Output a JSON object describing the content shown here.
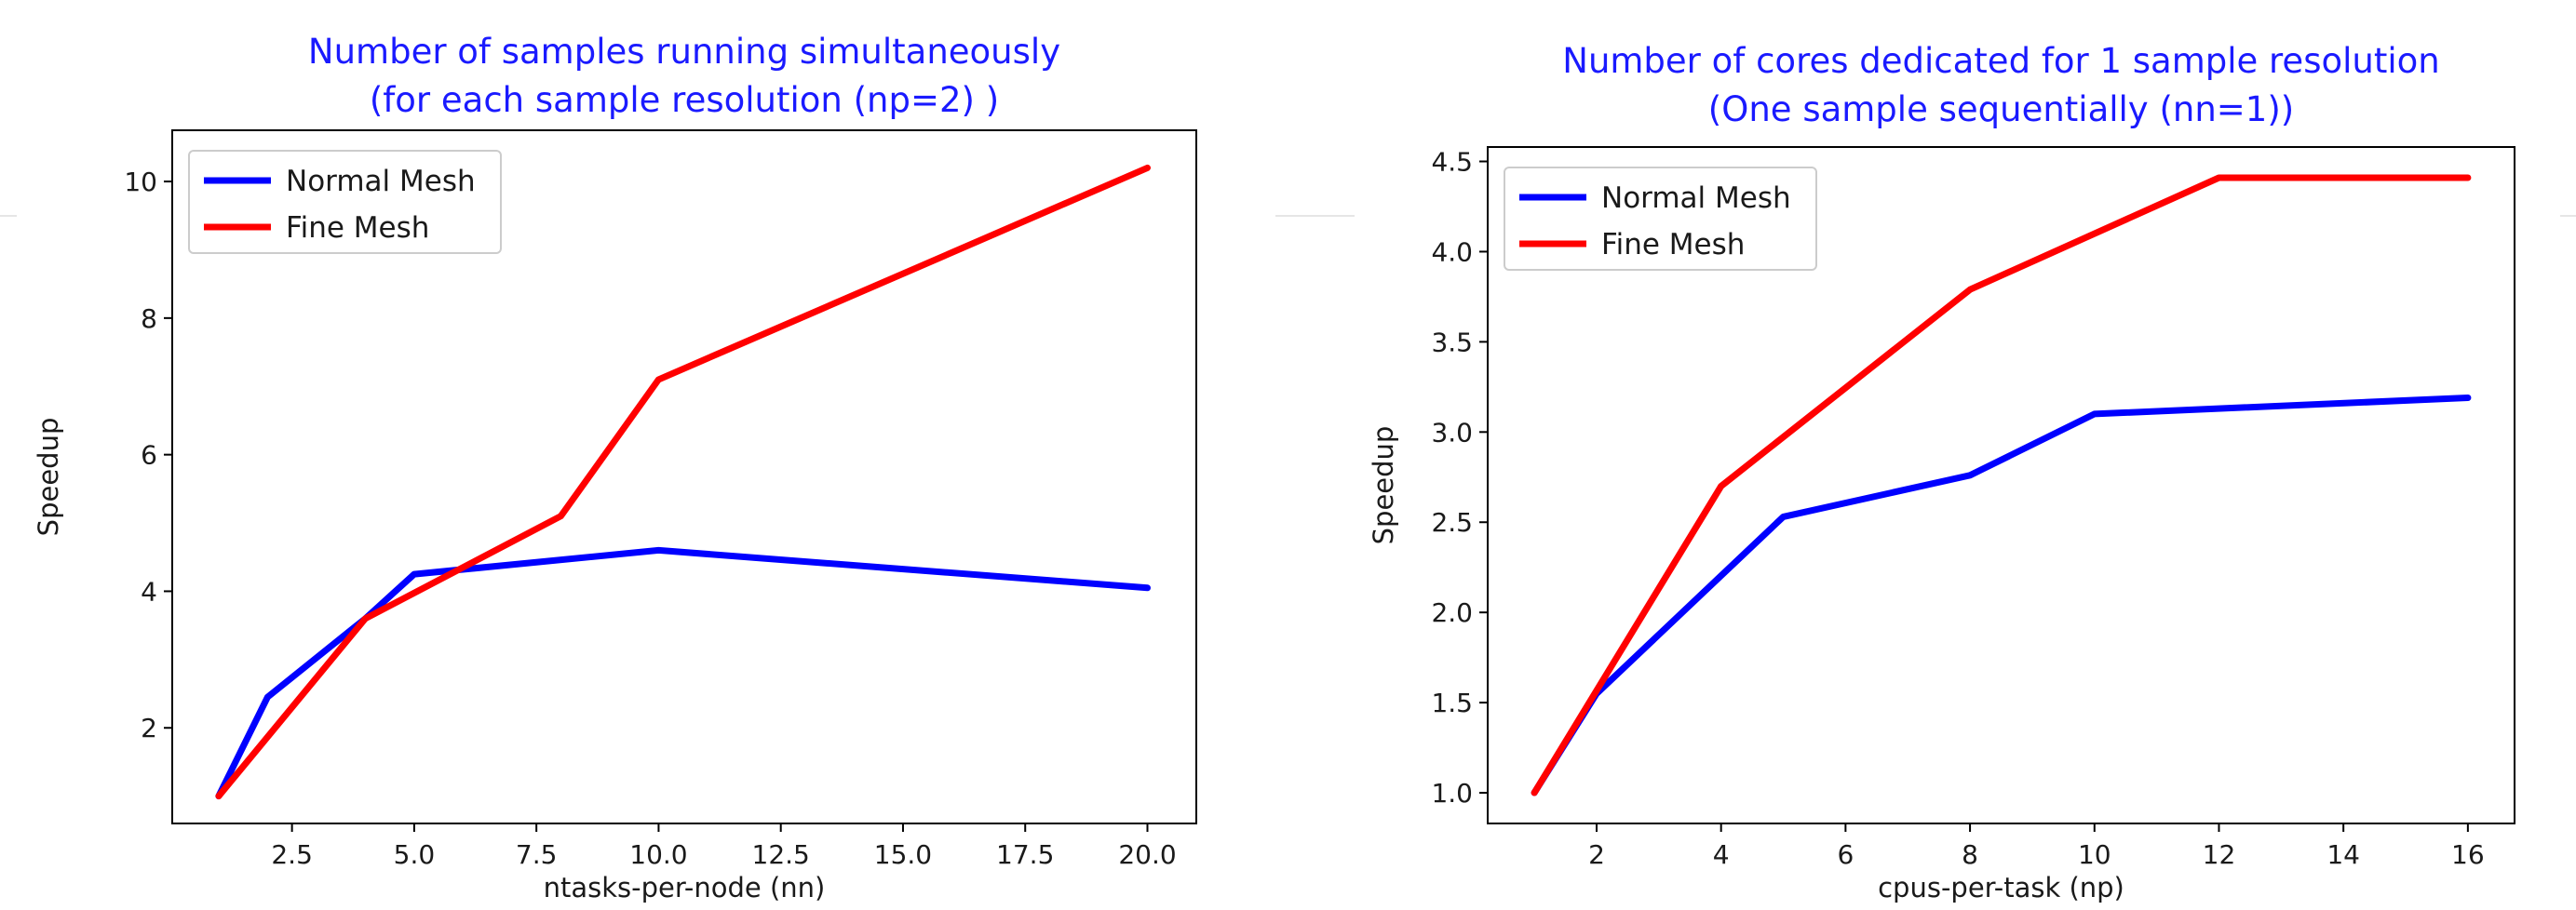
{
  "chart_data": [
    {
      "type": "line",
      "title": [
        "Number of samples running simultaneously",
        "(for each sample resolution (np=2) )"
      ],
      "xlabel": "ntasks-per-node (nn)",
      "ylabel": "Speedup",
      "xlim": [
        0.05,
        21.0
      ],
      "ylim": [
        0.6,
        10.75
      ],
      "xticks": [
        2.5,
        5.0,
        7.5,
        10.0,
        12.5,
        15.0,
        17.5,
        20.0
      ],
      "xtick_labels": [
        "2.5",
        "5.0",
        "7.5",
        "10.0",
        "12.5",
        "15.0",
        "17.5",
        "20.0"
      ],
      "yticks": [
        2,
        4,
        6,
        8,
        10
      ],
      "ytick_labels": [
        "2",
        "4",
        "6",
        "8",
        "10"
      ],
      "legend_position": "top-left",
      "grid": false,
      "series": [
        {
          "name": "Normal Mesh",
          "color": "#0000ff",
          "x": [
            1,
            2,
            4,
            5,
            10,
            20
          ],
          "y": [
            1.0,
            2.45,
            3.6,
            4.25,
            4.6,
            4.05
          ]
        },
        {
          "name": "Fine Mesh",
          "color": "#ff0000",
          "x": [
            1,
            4,
            8,
            10,
            20
          ],
          "y": [
            1.0,
            3.6,
            5.1,
            7.1,
            10.2
          ]
        }
      ]
    },
    {
      "type": "line",
      "title": [
        "Number of cores dedicated for 1 sample resolution",
        "(One sample sequentially (nn=1))"
      ],
      "xlabel": "cpus-per-task (np)",
      "ylabel": "Speedup",
      "xlim": [
        0.25,
        16.75
      ],
      "ylim": [
        0.83,
        4.58
      ],
      "xticks": [
        2,
        4,
        6,
        8,
        10,
        12,
        14,
        16
      ],
      "xtick_labels": [
        "2",
        "4",
        "6",
        "8",
        "10",
        "12",
        "14",
        "16"
      ],
      "yticks": [
        1.0,
        1.5,
        2.0,
        2.5,
        3.0,
        3.5,
        4.0,
        4.5
      ],
      "ytick_labels": [
        "1.0",
        "1.5",
        "2.0",
        "2.5",
        "3.0",
        "3.5",
        "4.0",
        "4.5"
      ],
      "legend_position": "top-left",
      "grid": false,
      "series": [
        {
          "name": "Normal Mesh",
          "color": "#0000ff",
          "x": [
            1,
            2,
            5,
            8,
            10,
            16
          ],
          "y": [
            1.0,
            1.55,
            2.53,
            2.76,
            3.1,
            3.19
          ]
        },
        {
          "name": "Fine Mesh",
          "color": "#ff0000",
          "x": [
            1,
            4,
            8,
            12,
            16
          ],
          "y": [
            1.0,
            2.7,
            3.79,
            4.41,
            4.41
          ]
        }
      ]
    }
  ]
}
